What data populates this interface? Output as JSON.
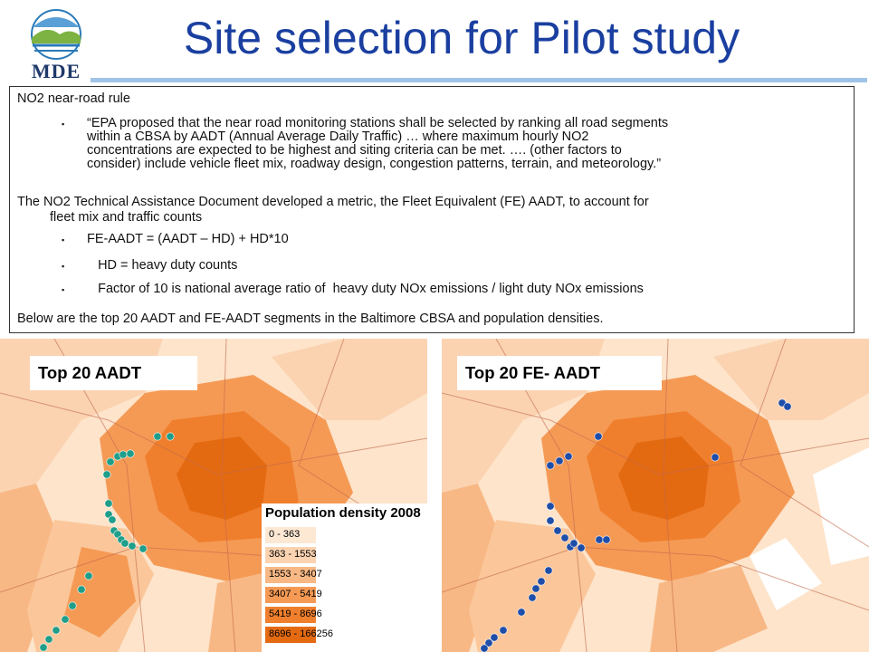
{
  "logo": {
    "text": "MDE",
    "sky": "#2a7ab8",
    "hills": "#7cb342"
  },
  "title": "Site selection for Pilot study",
  "textbox": {
    "heading": "NO2 near-road rule",
    "quote_lines": [
      "“EPA proposed that the near road monitoring stations shall be selected by ranking all road segments",
      "within a CBSA by AADT (Annual Average Daily Traffic) … where maximum hourly NO2",
      "concentrations are expected to be highest and siting criteria can be met. …. (other factors to",
      "consider) include vehicle fleet mix, roadway design, congestion patterns, terrain, and meteorology.”"
    ],
    "para_line1": "The NO2 Technical Assistance Document developed a metric,  the Fleet Equivalent (FE) AADT, to account for",
    "para_line2": "fleet mix and traffic counts",
    "bullets": [
      "FE-AADT = (AADT – HD) + HD*10",
      "   HD = heavy duty counts",
      "   Factor of 10 is national average ratio of  heavy duty NOx emissions / light duty NOx emissions"
    ],
    "footer": "Below are the top 20 AADT and FE-AADT segments in the Baltimore CBSA and population densities."
  },
  "maps": {
    "left_label": "Top 20 AADT",
    "right_label": "Top 20 FE- AADT",
    "left_marker_color": "#1f9e8a",
    "right_marker_color": "#1f4ea8"
  },
  "legend": {
    "title": "Population density 2008",
    "classes": [
      {
        "label": "0 - 363",
        "color": "#fde8d4"
      },
      {
        "label": "363 - 1553",
        "color": "#fbd3b1"
      },
      {
        "label": "1553 - 3407",
        "color": "#f8b885"
      },
      {
        "label": "3407 - 5419",
        "color": "#f59a55"
      },
      {
        "label": "5419 - 8696",
        "color": "#ef7f2d"
      },
      {
        "label": "8696 - 166256",
        "color": "#e46a12"
      }
    ]
  }
}
